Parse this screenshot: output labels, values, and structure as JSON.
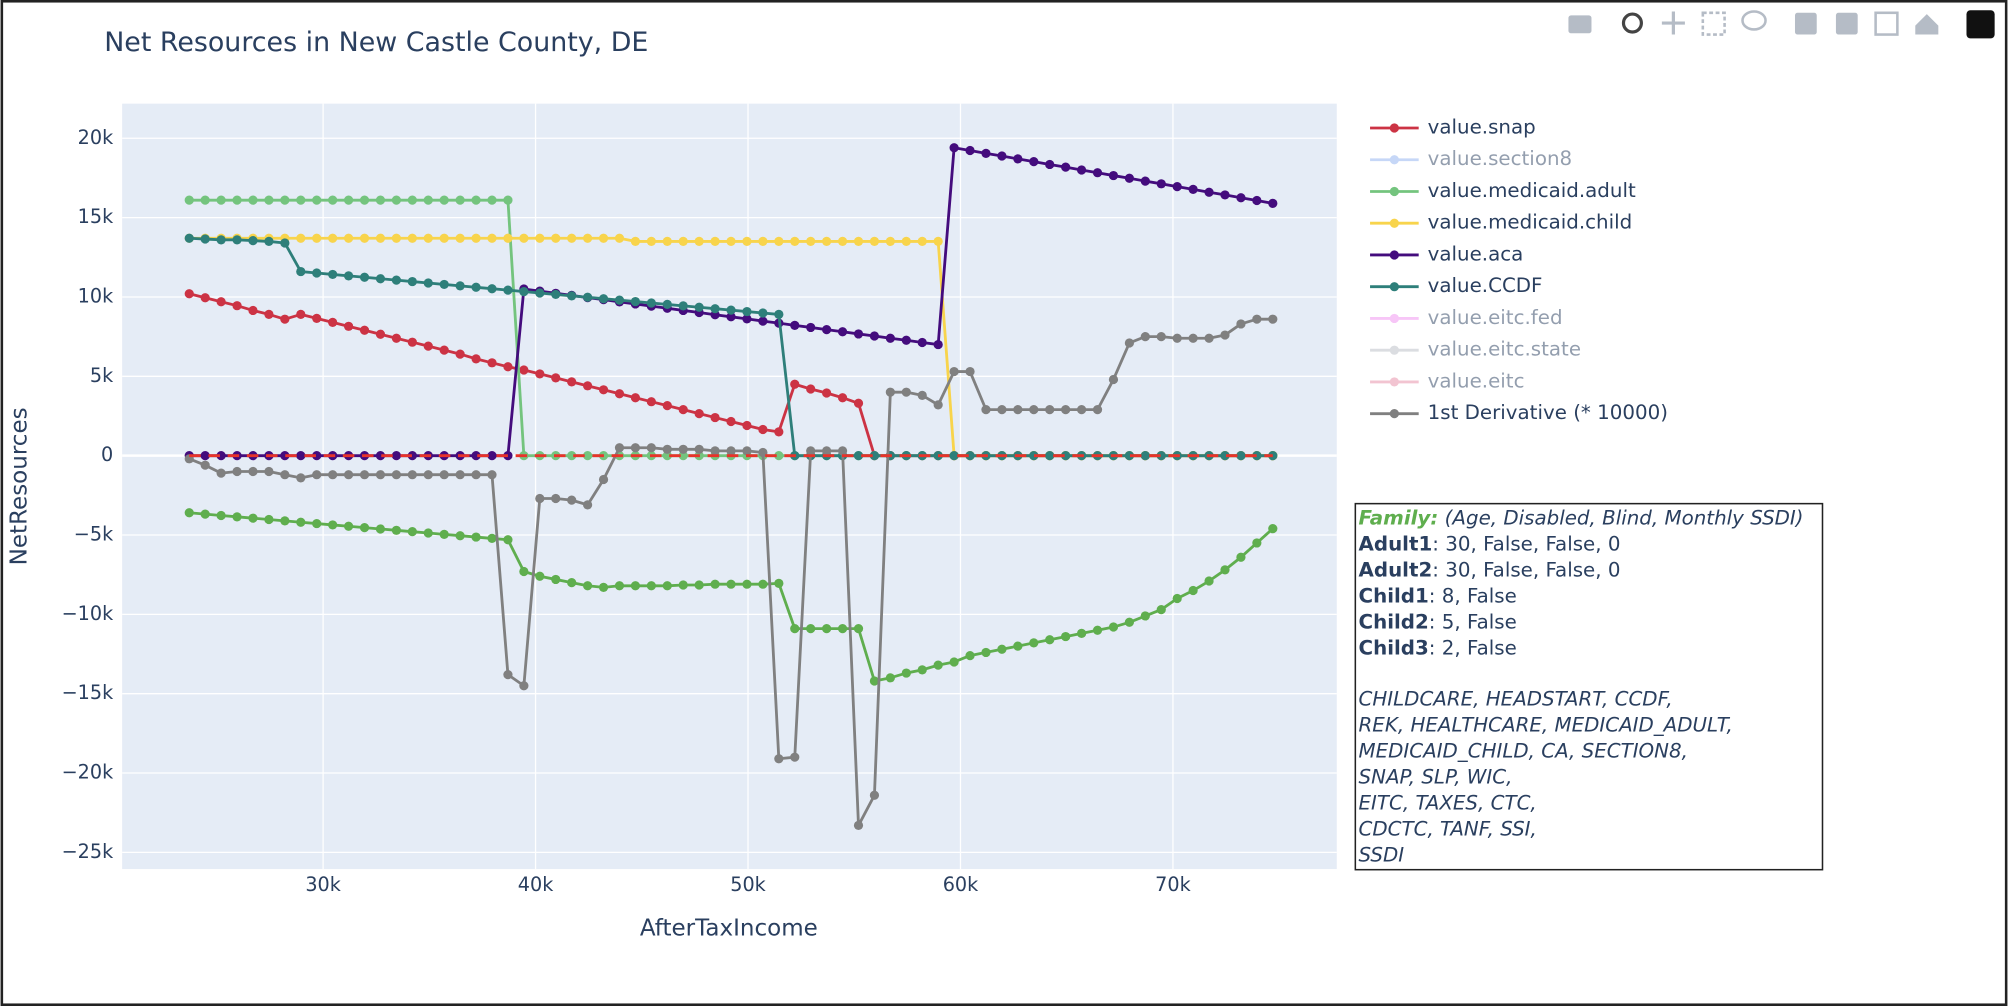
{
  "chart_data": {
    "type": "line",
    "title": "Net Resources in New Castle County, DE",
    "x_label": "AfterTaxIncome",
    "y_label": "NetResources",
    "xlim": [
      20542,
      77711
    ],
    "ylim": [
      -26050,
      22180
    ],
    "xticks": [
      {
        "value": 30000,
        "label": "30k"
      },
      {
        "value": 40000,
        "label": "40k"
      },
      {
        "value": 50000,
        "label": "50k"
      },
      {
        "value": 60000,
        "label": "60k"
      },
      {
        "value": 70000,
        "label": "70k"
      }
    ],
    "yticks": [
      {
        "value": -25000,
        "label": "−25k"
      },
      {
        "value": -20000,
        "label": "−20k"
      },
      {
        "value": -15000,
        "label": "−15k"
      },
      {
        "value": -10000,
        "label": "−10k"
      },
      {
        "value": -5000,
        "label": "−5k"
      },
      0,
      {
        "value": 5000,
        "label": "5k"
      },
      {
        "value": 10000,
        "label": "10k"
      },
      {
        "value": 15000,
        "label": "15k"
      },
      {
        "value": 20000,
        "label": "20k"
      }
    ],
    "grid": true,
    "legend": "right",
    "x": [
      23700,
      24450,
      25200,
      25950,
      26700,
      27450,
      28200,
      28950,
      29700,
      30450,
      31200,
      31950,
      32700,
      33450,
      34200,
      34950,
      35700,
      36450,
      37200,
      37950,
      38700,
      39450,
      40200,
      40950,
      41700,
      42450,
      43200,
      43950,
      44700,
      45450,
      46200,
      46950,
      47700,
      48450,
      49200,
      49950,
      50700,
      51450,
      52200,
      52950,
      53700,
      54450,
      55200,
      55950,
      56700,
      57450,
      58200,
      58950,
      59700,
      60450,
      61200,
      61950,
      62700,
      63450,
      64200,
      64950,
      65700,
      66450,
      67200,
      67950,
      68700,
      69450,
      70200,
      70950,
      71700,
      72450,
      73200,
      73950,
      74700
    ],
    "series": [
      {
        "color": "#5fae4e",
        "visible": true,
        "values": [
          -3600,
          -3685,
          -3770,
          -3855,
          -3940,
          -4025,
          -4110,
          -4195,
          -4280,
          -4365,
          -4450,
          -4535,
          -4620,
          -4705,
          -4790,
          -4875,
          -4960,
          -5045,
          -5130,
          -5215,
          -5300,
          -7300,
          -7600,
          -7800,
          -8000,
          -8200,
          -8300,
          -8200,
          -8200,
          -8200,
          -8200,
          -8150,
          -8150,
          -8100,
          -8100,
          -8100,
          -8100,
          -8050,
          -10900,
          -10900,
          -10900,
          -10900,
          -10900,
          -14200,
          -14000,
          -13700,
          -13500,
          -13200,
          -13000,
          -12600,
          -12400,
          -12200,
          -12000,
          -11800,
          -11600,
          -11400,
          -11200,
          -11000,
          -10800,
          -10500,
          -10100,
          -9700,
          -9000,
          -8500,
          -7900,
          -7200,
          -6400,
          -5500,
          -4600
        ]
      },
      {
        "name": "value.snap",
        "color": "#cc3344",
        "visible": true,
        "values": [
          10200,
          9950,
          9700,
          9450,
          9150,
          8900,
          8600,
          8900,
          8650,
          8400,
          8150,
          7900,
          7650,
          7400,
          7150,
          6900,
          6650,
          6400,
          6100,
          5850,
          5600,
          5400,
          5150,
          4900,
          4650,
          4400,
          4150,
          3900,
          3650,
          3400,
          3150,
          2900,
          2650,
          2400,
          2150,
          1900,
          1650,
          1500,
          4500,
          4200,
          3950,
          3650,
          3300,
          0,
          0,
          0,
          0,
          0,
          0,
          0,
          0,
          0,
          0,
          0,
          0,
          0,
          0,
          0,
          0,
          0,
          0,
          0,
          0,
          0,
          0,
          0,
          0,
          0,
          0
        ]
      },
      {
        "name": "value.section8",
        "color": "#8fb1f0",
        "visible": false,
        "values": [
          null,
          null,
          null,
          null,
          null,
          null,
          null,
          null,
          null,
          null,
          null,
          null,
          null,
          null,
          null,
          null,
          null,
          null,
          null,
          null,
          null,
          null,
          null,
          null,
          null,
          null,
          null,
          null,
          null,
          null,
          null,
          null,
          null,
          null,
          null,
          null,
          null,
          null,
          null,
          null,
          null,
          null,
          null,
          null,
          null,
          null,
          null,
          null,
          null,
          null,
          null,
          null,
          null,
          null,
          null,
          null,
          null,
          null,
          null,
          null,
          null,
          null,
          null,
          null,
          null,
          null,
          null,
          null,
          null
        ]
      },
      {
        "name": "value.medicaid.adult",
        "color": "#74c47e",
        "visible": true,
        "values": [
          16100,
          16100,
          16100,
          16100,
          16100,
          16100,
          16100,
          16100,
          16100,
          16100,
          16100,
          16100,
          16100,
          16100,
          16100,
          16100,
          16100,
          16100,
          16100,
          16100,
          16100,
          0,
          0,
          0,
          0,
          0,
          0,
          0,
          0,
          0,
          0,
          0,
          0,
          0,
          0,
          0,
          0,
          0,
          0,
          0,
          0,
          0,
          0,
          0,
          0,
          0,
          0,
          0,
          0,
          0,
          0,
          0,
          0,
          0,
          0,
          0,
          0,
          0,
          0,
          0,
          0,
          0,
          0,
          0,
          0,
          0,
          0,
          0,
          0
        ]
      },
      {
        "name": "value.medicaid.child",
        "color": "#f8d44c",
        "visible": true,
        "values": [
          13700,
          13700,
          13700,
          13700,
          13700,
          13700,
          13700,
          13700,
          13700,
          13700,
          13700,
          13700,
          13700,
          13700,
          13700,
          13700,
          13700,
          13700,
          13700,
          13700,
          13700,
          13700,
          13700,
          13700,
          13700,
          13700,
          13700,
          13700,
          13500,
          13500,
          13500,
          13500,
          13500,
          13500,
          13500,
          13500,
          13500,
          13500,
          13500,
          13500,
          13500,
          13500,
          13500,
          13500,
          13500,
          13500,
          13500,
          13500,
          0,
          0,
          0,
          0,
          0,
          0,
          0,
          0,
          0,
          0,
          0,
          0,
          0,
          0,
          0,
          0,
          0,
          0,
          0,
          0,
          0
        ]
      },
      {
        "name": "value.aca",
        "color": "#440c7d",
        "visible": true,
        "values": [
          0,
          0,
          0,
          0,
          0,
          0,
          0,
          0,
          0,
          0,
          0,
          0,
          0,
          0,
          0,
          0,
          0,
          0,
          0,
          0,
          0,
          10500,
          10370,
          10230,
          10100,
          9960,
          9830,
          9690,
          9560,
          9420,
          9290,
          9150,
          9020,
          8880,
          8750,
          8620,
          8480,
          8350,
          8210,
          8080,
          7940,
          7810,
          7670,
          7540,
          7400,
          7270,
          7130,
          7000,
          19400,
          19230,
          19050,
          18880,
          18700,
          18530,
          18350,
          18180,
          18000,
          17830,
          17650,
          17480,
          17300,
          17130,
          16950,
          16780,
          16600,
          16430,
          16250,
          16080,
          15900
        ]
      },
      {
        "name": "value.CCDF",
        "color": "#2e7f7a",
        "visible": true,
        "values": [
          13700,
          13650,
          13600,
          13600,
          13550,
          13500,
          13400,
          11600,
          11510,
          11420,
          11330,
          11240,
          11150,
          11060,
          10970,
          10880,
          10790,
          10700,
          10610,
          10520,
          10430,
          10340,
          10250,
          10160,
          10070,
          9980,
          9890,
          9800,
          9710,
          9620,
          9530,
          9440,
          9350,
          9260,
          9170,
          9080,
          8990,
          8900,
          0,
          0,
          0,
          0,
          0,
          0,
          0,
          0,
          0,
          0,
          0,
          0,
          0,
          0,
          0,
          0,
          0,
          0,
          0,
          0,
          0,
          0,
          0,
          0,
          0,
          0,
          0,
          0,
          0,
          0,
          0
        ]
      },
      {
        "name": "value.eitc.fed",
        "color": "#f08ef0",
        "visible": false,
        "values": [
          null,
          null,
          null,
          null,
          null,
          null,
          null,
          null,
          null,
          null,
          null,
          null,
          null,
          null,
          null,
          null,
          null,
          null,
          null,
          null,
          null,
          null,
          null,
          null,
          null,
          null,
          null,
          null,
          null,
          null,
          null,
          null,
          null,
          null,
          null,
          null,
          null,
          null,
          null,
          null,
          null,
          null,
          null,
          null,
          null,
          null,
          null,
          null,
          null,
          null,
          null,
          null,
          null,
          null,
          null,
          null,
          null,
          null,
          null,
          null,
          null,
          null,
          null,
          null,
          null,
          null,
          null,
          null,
          null
        ]
      },
      {
        "name": "value.eitc.state",
        "color": "#b8bcc4",
        "visible": false,
        "values": [
          null,
          null,
          null,
          null,
          null,
          null,
          null,
          null,
          null,
          null,
          null,
          null,
          null,
          null,
          null,
          null,
          null,
          null,
          null,
          null,
          null,
          null,
          null,
          null,
          null,
          null,
          null,
          null,
          null,
          null,
          null,
          null,
          null,
          null,
          null,
          null,
          null,
          null,
          null,
          null,
          null,
          null,
          null,
          null,
          null,
          null,
          null,
          null,
          null,
          null,
          null,
          null,
          null,
          null,
          null,
          null,
          null,
          null,
          null,
          null,
          null,
          null,
          null,
          null,
          null,
          null,
          null,
          null,
          null
        ]
      },
      {
        "name": "value.eitc",
        "color": "#e78aa4",
        "visible": false,
        "values": [
          null,
          null,
          null,
          null,
          null,
          null,
          null,
          null,
          null,
          null,
          null,
          null,
          null,
          null,
          null,
          null,
          null,
          null,
          null,
          null,
          null,
          null,
          null,
          null,
          null,
          null,
          null,
          null,
          null,
          null,
          null,
          null,
          null,
          null,
          null,
          null,
          null,
          null,
          null,
          null,
          null,
          null,
          null,
          null,
          null,
          null,
          null,
          null,
          null,
          null,
          null,
          null,
          null,
          null,
          null,
          null,
          null,
          null,
          null,
          null,
          null,
          null,
          null,
          null,
          null,
          null,
          null,
          null,
          null
        ]
      },
      {
        "name": "1st Derivative (* 10000)",
        "color": "#808080",
        "visible": true,
        "values": [
          -200,
          -600,
          -1100,
          -1000,
          -1000,
          -1000,
          -1200,
          -1400,
          -1200,
          -1200,
          -1200,
          -1200,
          -1200,
          -1200,
          -1200,
          -1200,
          -1200,
          -1200,
          -1200,
          -1200,
          -13800,
          -14500,
          -2700,
          -2700,
          -2800,
          -3100,
          -1500,
          500,
          500,
          500,
          400,
          400,
          400,
          300,
          300,
          300,
          200,
          -19100,
          -19000,
          300,
          300,
          300,
          -23300,
          -21400,
          4000,
          4000,
          3800,
          3200,
          5300,
          5300,
          2900,
          2900,
          2900,
          2900,
          2900,
          2900,
          2900,
          2900,
          4800,
          7100,
          7500,
          7500,
          7400,
          7400,
          7400,
          7600,
          8300,
          8600,
          8600
        ]
      },
      {
        "color": "#e8332a",
        "visible": true,
        "dash": "dash",
        "values": [
          0,
          0,
          0,
          0,
          0,
          0,
          0,
          0,
          0,
          0,
          0,
          0,
          0,
          0,
          0,
          0,
          0,
          0,
          0,
          0,
          0,
          0,
          0,
          0,
          0,
          0,
          0,
          0,
          0,
          0,
          0,
          0,
          0,
          0,
          0,
          0,
          0,
          0,
          0,
          0,
          0,
          0,
          0,
          0,
          0,
          0,
          0,
          0,
          0,
          0,
          0,
          0,
          0,
          0,
          0,
          0,
          0,
          0,
          0,
          0,
          0,
          0,
          0,
          0,
          0,
          0,
          0,
          0,
          0
        ]
      }
    ],
    "annotation": {
      "rows": [
        {
          "label": "Family:",
          "text": "(Age, Disabled, Blind, Monthly SSDI)"
        },
        {
          "label": "Adult1",
          "text": ": 30, False, False, 0"
        },
        {
          "label": "Adult2",
          "text": ": 30, False, False, 0"
        },
        {
          "label": "Child1",
          "text": ": 8, False"
        },
        {
          "label": "Child2",
          "text": ": 5, False"
        },
        {
          "label": "Child3",
          "text": ": 2, False"
        }
      ],
      "programs": [
        "CHILDCARE, HEADSTART, CCDF,",
        "REK, HEALTHCARE, MEDICAID_ADULT,",
        "MEDICAID_CHILD, CA, SECTION8,",
        "SNAP, SLP, WIC,",
        "EITC, TAXES, CTC,",
        "CDCTC, TANF, SSI,",
        "SSDI"
      ]
    }
  }
}
